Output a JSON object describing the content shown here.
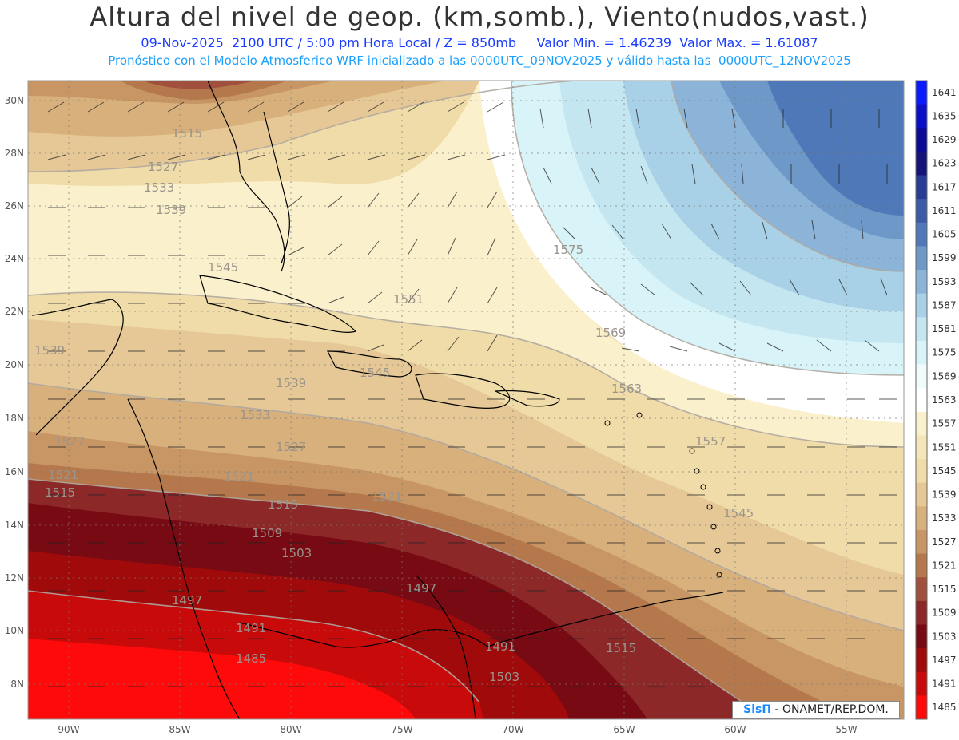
{
  "header": {
    "title": "Altura del nivel de geop. (km,somb.), Viento(nudos,vast.)",
    "subtitle_line1": "09-Nov-2025  2100 UTC / 5:00 pm Hora Local / Z = 850mb     Valor Min. = 1.46239  Valor Max. = 1.61087",
    "subtitle_line2": "Pronóstico con el Modelo Atmosferico WRF inicializado a las 0000UTC_09NOV2025 y válido hasta las  0000UTC_12NOV2025"
  },
  "map": {
    "lat_labels": [
      "30N",
      "28N",
      "26N",
      "24N",
      "22N",
      "20N",
      "18N",
      "16N",
      "14N",
      "12N",
      "10N",
      "8N"
    ],
    "lon_labels": [
      "90W",
      "85W",
      "80W",
      "75W",
      "70W",
      "65W",
      "60W",
      "55W"
    ],
    "contour_labels": [
      "1515",
      "1527",
      "1533",
      "1539",
      "1545",
      "1551",
      "1557",
      "1563",
      "1569",
      "1575",
      "1521",
      "1509",
      "1503",
      "1497",
      "1491",
      "1485"
    ]
  },
  "colorbar": {
    "levels": [
      "1641",
      "1635",
      "1629",
      "1623",
      "1617",
      "1611",
      "1605",
      "1599",
      "1593",
      "1587",
      "1581",
      "1575",
      "1569",
      "1563",
      "1557",
      "1551",
      "1545",
      "1539",
      "1533",
      "1527",
      "1521",
      "1515",
      "1509",
      "1503",
      "1497",
      "1491",
      "1485"
    ],
    "colors": [
      "#0a1aff",
      "#0a10c8",
      "#0b0b96",
      "#141478",
      "#283c96",
      "#3c5aa8",
      "#4e78b8",
      "#6e98c8",
      "#8cb4d8",
      "#a8d0e6",
      "#c4e6f0",
      "#d8f4f8",
      "#f0fcfc",
      "#ffffff",
      "#faf0cc",
      "#f5e6b8",
      "#f0dca8",
      "#e6c896",
      "#d8b07c",
      "#c89664",
      "#b4784c",
      "#a0503c",
      "#8c2828",
      "#780a14",
      "#a00a0a",
      "#c80a0a",
      "#ff0a0a"
    ]
  },
  "credit": {
    "brand": "SisΠ",
    "text": "- ONAMET/REP.DOM."
  }
}
